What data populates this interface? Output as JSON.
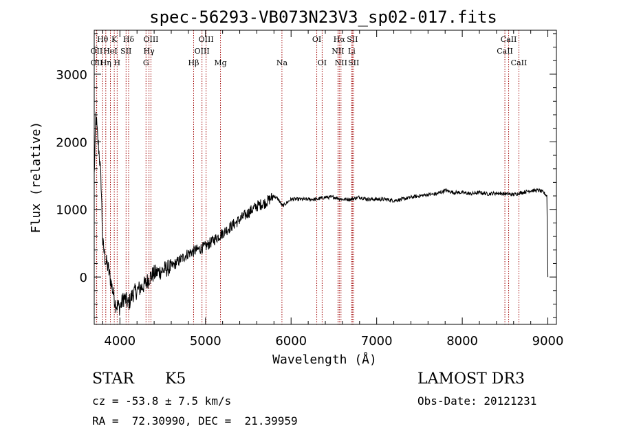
{
  "chart_data": {
    "type": "line",
    "title": "spec-56293-VB073N23V3_sp02-017.fits",
    "xlabel": "Wavelength (Å)",
    "ylabel": "Flux (relative)",
    "xlim": [
      3700,
      9100
    ],
    "ylim": [
      -700,
      3650
    ],
    "xticks": [
      4000,
      5000,
      6000,
      7000,
      8000,
      9000
    ],
    "yticks": [
      0,
      1000,
      2000,
      3000
    ],
    "series": [
      {
        "name": "flux",
        "x": [
          3700,
          3720,
          3740,
          3760,
          3780,
          3800,
          3830,
          3860,
          3900,
          3950,
          4000,
          4050,
          4100,
          4150,
          4200,
          4250,
          4300,
          4350,
          4400,
          4500,
          4600,
          4700,
          4800,
          4900,
          5000,
          5100,
          5200,
          5300,
          5400,
          5500,
          5600,
          5700,
          5800,
          5850,
          5900,
          5950,
          6000,
          6100,
          6200,
          6300,
          6400,
          6500,
          6600,
          6700,
          6800,
          6900,
          7000,
          7100,
          7200,
          7300,
          7400,
          7500,
          7600,
          7700,
          7800,
          7900,
          8000,
          8100,
          8200,
          8300,
          8400,
          8500,
          8600,
          8700,
          8800,
          8900,
          8950,
          8990,
          9000
        ],
        "y": [
          1500,
          2400,
          2050,
          1800,
          1400,
          500,
          250,
          150,
          -100,
          -400,
          -450,
          -300,
          -400,
          -250,
          -200,
          -150,
          -100,
          0,
          50,
          100,
          150,
          250,
          350,
          400,
          450,
          550,
          650,
          750,
          850,
          950,
          1050,
          1100,
          1200,
          1150,
          1050,
          1100,
          1150,
          1150,
          1150,
          1150,
          1180,
          1180,
          1150,
          1150,
          1180,
          1150,
          1150,
          1150,
          1130,
          1150,
          1180,
          1200,
          1220,
          1230,
          1280,
          1250,
          1250,
          1230,
          1250,
          1230,
          1240,
          1230,
          1220,
          1250,
          1280,
          1280,
          1250,
          1200,
          0
        ]
      }
    ],
    "spectral_lines": [
      {
        "label": "Hθ",
        "x": 3798,
        "row": 0
      },
      {
        "label": "K",
        "x": 3934,
        "row": 0
      },
      {
        "label": "Hδ",
        "x": 4102,
        "row": 0
      },
      {
        "label": "OIII",
        "x": 4363,
        "row": 0
      },
      {
        "label": "OIII",
        "x": 5007,
        "row": 0
      },
      {
        "label": "OI",
        "x": 6300,
        "row": 0
      },
      {
        "label": "Hα",
        "x": 6563,
        "row": 0
      },
      {
        "label": "SII",
        "x": 6716,
        "row": 0
      },
      {
        "label": "CaII",
        "x": 8542,
        "row": 0
      },
      {
        "label": "OII",
        "x": 3727,
        "row": 1
      },
      {
        "label": "HeI",
        "x": 3889,
        "row": 1
      },
      {
        "label": "SII",
        "x": 4072,
        "row": 1
      },
      {
        "label": "Hγ",
        "x": 4340,
        "row": 1
      },
      {
        "label": "OIII",
        "x": 4959,
        "row": 1
      },
      {
        "label": "NII",
        "x": 6548,
        "row": 1
      },
      {
        "label": "Li",
        "x": 6708,
        "row": 1
      },
      {
        "label": "CaII",
        "x": 8498,
        "row": 1
      },
      {
        "label": "OII",
        "x": 3729,
        "row": 2
      },
      {
        "label": "Hη",
        "x": 3835,
        "row": 2
      },
      {
        "label": "H",
        "x": 3968,
        "row": 2
      },
      {
        "label": "G",
        "x": 4305,
        "row": 2
      },
      {
        "label": "Hβ",
        "x": 4861,
        "row": 2
      },
      {
        "label": "Mg",
        "x": 5175,
        "row": 2
      },
      {
        "label": "Na",
        "x": 5893,
        "row": 2
      },
      {
        "label": "OI",
        "x": 6363,
        "row": 2
      },
      {
        "label": "NII",
        "x": 6583,
        "row": 2
      },
      {
        "label": "SII",
        "x": 6731,
        "row": 2
      },
      {
        "label": "CaII",
        "x": 8662,
        "row": 2
      }
    ]
  },
  "info": {
    "class": "STAR",
    "subclass": "K5",
    "survey": "LAMOST DR3",
    "cz": "cz = -53.8 ± 7.5 km/s",
    "obs_date": "Obs-Date: 20121231",
    "coords": "RA =  72.30990, DEC =  21.39959"
  }
}
